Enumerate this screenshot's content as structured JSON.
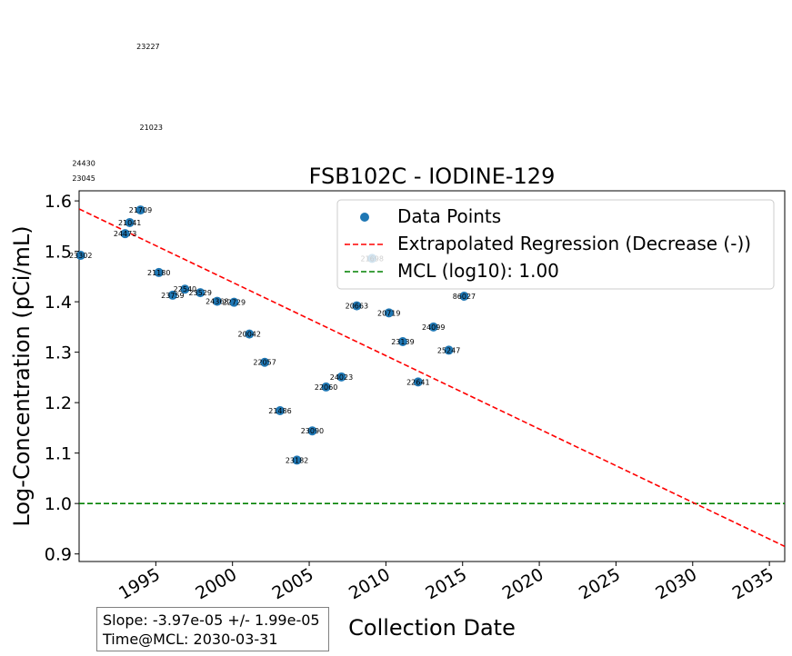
{
  "chart_data": {
    "type": "scatter",
    "title": "FSB102C - IODINE-129",
    "xlabel": "Collection Date",
    "ylabel": "Log-Concentration (pCi/mL)",
    "xlim": [
      1990.0,
      2036.0
    ],
    "ylim": [
      0.885,
      1.62
    ],
    "x_ticks": [
      1995,
      2000,
      2005,
      2010,
      2015,
      2020,
      2025,
      2030,
      2035
    ],
    "y_ticks": [
      "0.9",
      "1.0",
      "1.1",
      "1.2",
      "1.3",
      "1.4",
      "1.5",
      "1.6"
    ],
    "grid": false,
    "legend_position": "top-right",
    "legend": [
      {
        "label": "Data Points",
        "kind": "marker",
        "color": "#1f77b4"
      },
      {
        "label": "Extrapolated Regression (Decrease (-))",
        "kind": "dashed",
        "color": "#ff0000"
      },
      {
        "label": "MCL (log10): 1.00",
        "kind": "dashed",
        "color": "#008000"
      }
    ],
    "points": [
      {
        "x": 1990.1,
        "y": 1.492,
        "label": "23302"
      },
      {
        "x": 1993.0,
        "y": 1.535,
        "label": "24473"
      },
      {
        "x": 1993.3,
        "y": 1.557,
        "label": "21041"
      },
      {
        "x": 1994.0,
        "y": 1.582,
        "label": "21709"
      },
      {
        "x": 1995.2,
        "y": 1.458,
        "label": "21180"
      },
      {
        "x": 1996.1,
        "y": 1.413,
        "label": "23759"
      },
      {
        "x": 1996.9,
        "y": 1.425,
        "label": "22540"
      },
      {
        "x": 1997.9,
        "y": 1.418,
        "label": "23529"
      },
      {
        "x": 1999.0,
        "y": 1.401,
        "label": "24368"
      },
      {
        "x": 2000.1,
        "y": 1.399,
        "label": "22729"
      },
      {
        "x": 2001.1,
        "y": 1.336,
        "label": "20042"
      },
      {
        "x": 2002.1,
        "y": 1.28,
        "label": "22057"
      },
      {
        "x": 2003.1,
        "y": 1.184,
        "label": "21486"
      },
      {
        "x": 2004.2,
        "y": 1.086,
        "label": "23182"
      },
      {
        "x": 2005.2,
        "y": 1.144,
        "label": "23090"
      },
      {
        "x": 2006.1,
        "y": 1.231,
        "label": "22060"
      },
      {
        "x": 2007.1,
        "y": 1.251,
        "label": "24023"
      },
      {
        "x": 2008.1,
        "y": 1.392,
        "label": "20663"
      },
      {
        "x": 2009.1,
        "y": 1.486,
        "label": "21698"
      },
      {
        "x": 2010.2,
        "y": 1.378,
        "label": "20719"
      },
      {
        "x": 2011.1,
        "y": 1.321,
        "label": "23139"
      },
      {
        "x": 2012.1,
        "y": 1.241,
        "label": "22641"
      },
      {
        "x": 2013.1,
        "y": 1.35,
        "label": "24099"
      },
      {
        "x": 2014.1,
        "y": 1.304,
        "label": "25247"
      },
      {
        "x": 2015.1,
        "y": 1.411,
        "label": "86027"
      }
    ],
    "outside_labels": [
      {
        "x": 1990.3,
        "y": 1.6455,
        "label": "23045"
      },
      {
        "x": 1990.3,
        "y": 1.6745,
        "label": "24430"
      },
      {
        "x": 1994.7,
        "y": 1.746,
        "label": "21023"
      },
      {
        "x": 1994.5,
        "y": 1.9065,
        "label": "23227"
      }
    ],
    "regression": {
      "x": [
        1990.0,
        2036.0
      ],
      "y": [
        1.584,
        0.915
      ],
      "color": "#ff0000"
    },
    "mcl": {
      "y": 1.0,
      "color": "#008000"
    },
    "stats": {
      "slope": "Slope: -3.97e-05 +/- 1.99e-05",
      "time_at_mcl": "Time@MCL: 2030-03-31"
    }
  }
}
